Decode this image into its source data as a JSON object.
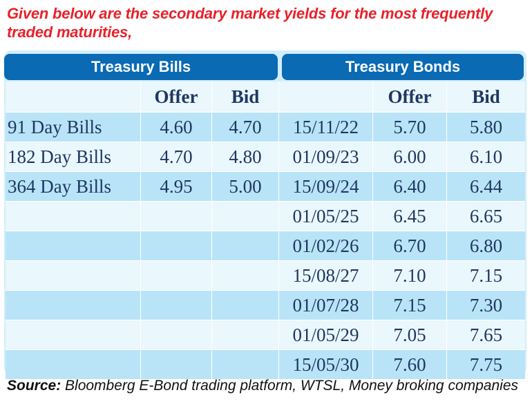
{
  "intro": "Given below are the secondary market yields for the most frequently traded maturities,",
  "headers": {
    "bills": "Treasury Bills",
    "bonds": "Treasury Bonds"
  },
  "columns": {
    "bill_offer": "Offer",
    "bill_bid": "Bid",
    "bond_offer": "Offer",
    "bond_bid": "Bid"
  },
  "rows": [
    {
      "bill": "91 Day Bills",
      "bill_offer": "4.60",
      "bill_bid": "4.70",
      "bond": "15/11/22",
      "bond_offer": "5.70",
      "bond_bid": "5.80"
    },
    {
      "bill": "182 Day Bills",
      "bill_offer": "4.70",
      "bill_bid": "4.80",
      "bond": "01/09/23",
      "bond_offer": "6.00",
      "bond_bid": "6.10"
    },
    {
      "bill": "364 Day Bills",
      "bill_offer": "4.95",
      "bill_bid": "5.00",
      "bond": "15/09/24",
      "bond_offer": "6.40",
      "bond_bid": "6.44"
    },
    {
      "bill": "",
      "bill_offer": "",
      "bill_bid": "",
      "bond": "01/05/25",
      "bond_offer": "6.45",
      "bond_bid": "6.65"
    },
    {
      "bill": "",
      "bill_offer": "",
      "bill_bid": "",
      "bond": "01/02/26",
      "bond_offer": "6.70",
      "bond_bid": "6.80"
    },
    {
      "bill": "",
      "bill_offer": "",
      "bill_bid": "",
      "bond": "15/08/27",
      "bond_offer": "7.10",
      "bond_bid": "7.15"
    },
    {
      "bill": "",
      "bill_offer": "",
      "bill_bid": "",
      "bond": "01/07/28",
      "bond_offer": "7.15",
      "bond_bid": "7.30"
    },
    {
      "bill": "",
      "bill_offer": "",
      "bill_bid": "",
      "bond": "01/05/29",
      "bond_offer": "7.05",
      "bond_bid": "7.65"
    },
    {
      "bill": "",
      "bill_offer": "",
      "bill_bid": "",
      "bond": "15/05/30",
      "bond_offer": "7.60",
      "bond_bid": "7.75"
    }
  ],
  "source": {
    "label": "Source:",
    "text": " Bloomberg E-Bond trading platform, WTSL, Money broking companies"
  },
  "colors": {
    "header_blue": "#0a6ab3",
    "row_dark": "#b9e4f8",
    "row_light": "#eaf7fd",
    "intro_red": "#e8212a",
    "text_navy": "#1f3761"
  }
}
